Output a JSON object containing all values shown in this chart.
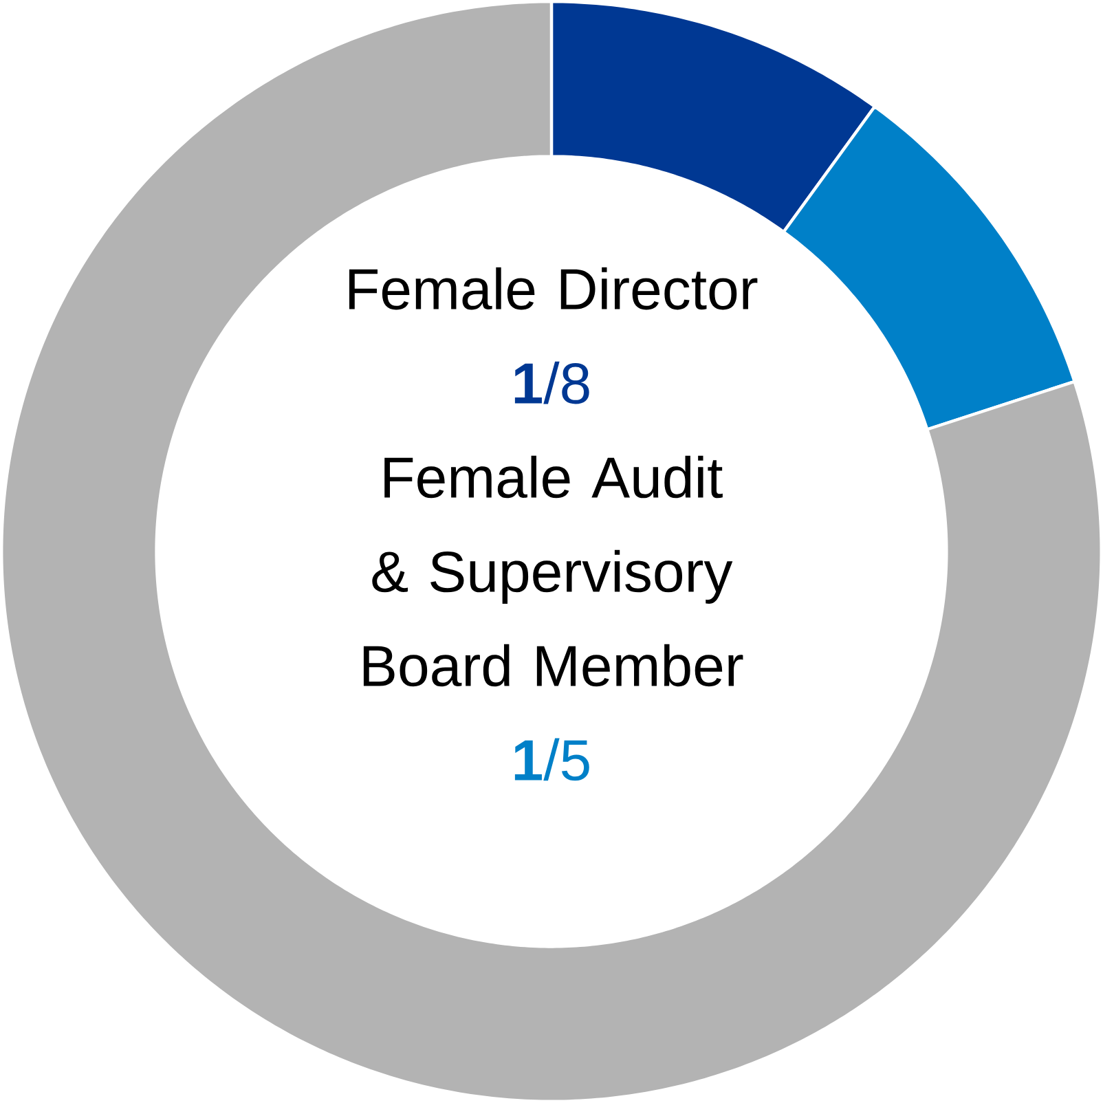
{
  "chart_data": {
    "type": "donut",
    "categories": [
      null,
      null,
      null
    ],
    "values": [
      10,
      10,
      80
    ],
    "colors": [
      "#003893",
      "#0080c8",
      "#b3b3b3"
    ],
    "annotations": [
      "Female Director",
      "**1**/8",
      "Female Audit & Supervisory Board Member",
      "**1**/5"
    ]
  }
}
